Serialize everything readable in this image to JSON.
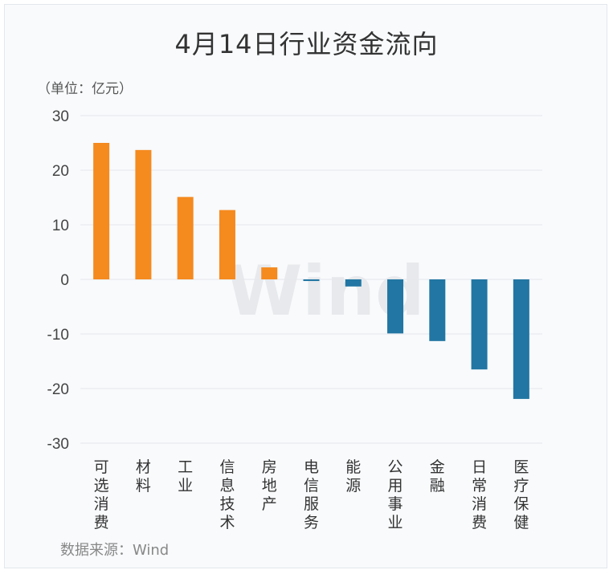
{
  "chart_data": {
    "type": "bar",
    "title": "4月14日行业资金流向",
    "unit_label": "（单位：亿元）",
    "source_label": "数据来源：Wind",
    "watermark": "Wind",
    "categories": [
      "可选消费",
      "材料",
      "工业",
      "信息技术",
      "房地产",
      "电信服务",
      "能源",
      "公用事业",
      "金融",
      "日常消费",
      "医疗保健"
    ],
    "values": [
      25.0,
      23.7,
      15.1,
      12.7,
      2.2,
      -0.3,
      -1.3,
      -9.9,
      -11.3,
      -16.5,
      -21.9
    ],
    "ylim": [
      -30,
      30
    ],
    "yticks": [
      30,
      20,
      10,
      0,
      -10,
      -20,
      -30
    ],
    "grid": true,
    "colors": {
      "positive": "#f58a1f",
      "negative": "#2276a3"
    }
  }
}
